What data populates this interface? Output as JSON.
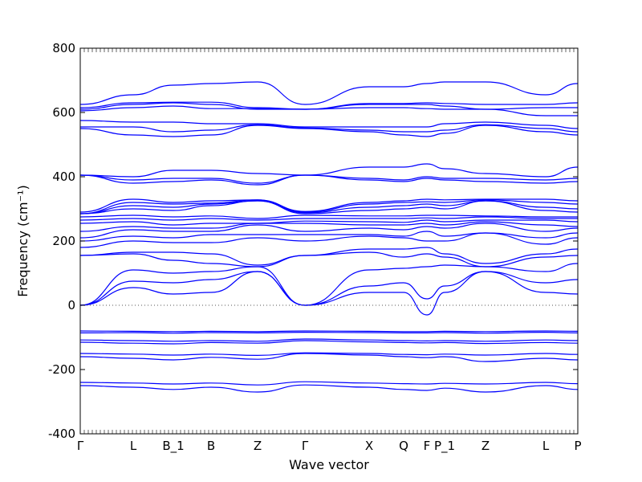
{
  "chart_data": {
    "type": "line",
    "title": "",
    "xlabel": "Wave vector",
    "ylabel": "Frequency (cm⁻¹)",
    "ylim": [
      -400,
      800
    ],
    "yticks": [
      -400,
      -200,
      0,
      200,
      400,
      600,
      800
    ],
    "path": [
      "Γ",
      "L",
      "B_1",
      "B",
      "Z",
      "Γ",
      "X",
      "Q",
      "F",
      "P_1",
      "Z",
      "L",
      "P"
    ],
    "grid": false,
    "legend": "none",
    "reference_line": {
      "y": 0,
      "style": "dotted"
    },
    "line_color": "#0000ff",
    "branches": [
      [
        -250,
        -255,
        -262,
        -255,
        -270,
        -248,
        -255,
        -262,
        -265,
        -258,
        -270,
        -250,
        -262
      ],
      [
        -240,
        -242,
        -245,
        -242,
        -248,
        -238,
        -242,
        -244,
        -245,
        -243,
        -245,
        -240,
        -244
      ],
      [
        -160,
        -165,
        -170,
        -162,
        -168,
        -150,
        -155,
        -160,
        -163,
        -160,
        -175,
        -165,
        -170
      ],
      [
        -150,
        -152,
        -155,
        -152,
        -156,
        -148,
        -150,
        -153,
        -154,
        -152,
        -155,
        -150,
        -153
      ],
      [
        -115,
        -118,
        -120,
        -116,
        -118,
        -110,
        -114,
        -116,
        -117,
        -116,
        -119,
        -116,
        -118
      ],
      [
        -108,
        -110,
        -112,
        -110,
        -112,
        -105,
        -108,
        -110,
        -111,
        -110,
        -112,
        -108,
        -110
      ],
      [
        -86,
        -85,
        -87,
        -85,
        -86,
        -84,
        -85,
        -86,
        -86,
        -85,
        -87,
        -84,
        -86
      ],
      [
        -80,
        -81,
        -82,
        -81,
        -82,
        -80,
        -81,
        -82,
        -82,
        -81,
        -82,
        -80,
        -81
      ],
      [
        0,
        55,
        35,
        40,
        105,
        0,
        40,
        40,
        -30,
        40,
        105,
        40,
        35
      ],
      [
        0,
        75,
        70,
        80,
        105,
        0,
        60,
        70,
        20,
        60,
        105,
        70,
        80
      ],
      [
        0,
        110,
        100,
        105,
        120,
        0,
        110,
        115,
        120,
        125,
        120,
        105,
        130
      ],
      [
        155,
        160,
        140,
        130,
        120,
        155,
        165,
        150,
        160,
        150,
        120,
        150,
        155
      ],
      [
        155,
        165,
        165,
        160,
        125,
        155,
        175,
        175,
        180,
        160,
        130,
        160,
        175
      ],
      [
        180,
        200,
        195,
        195,
        210,
        200,
        215,
        210,
        200,
        200,
        225,
        190,
        210
      ],
      [
        200,
        215,
        210,
        220,
        220,
        220,
        220,
        215,
        230,
        215,
        225,
        210,
        225
      ],
      [
        210,
        235,
        230,
        230,
        250,
        230,
        240,
        235,
        245,
        240,
        255,
        230,
        240
      ],
      [
        230,
        245,
        240,
        240,
        255,
        255,
        250,
        250,
        255,
        250,
        260,
        250,
        245
      ],
      [
        255,
        260,
        250,
        255,
        255,
        262,
        260,
        258,
        265,
        260,
        265,
        265,
        260
      ],
      [
        265,
        270,
        265,
        270,
        265,
        270,
        270,
        270,
        272,
        270,
        275,
        270,
        270
      ],
      [
        275,
        280,
        275,
        278,
        270,
        280,
        278,
        278,
        280,
        280,
        278,
        275,
        275
      ],
      [
        285,
        300,
        295,
        310,
        325,
        285,
        295,
        300,
        305,
        300,
        325,
        295,
        290
      ],
      [
        285,
        310,
        305,
        315,
        325,
        288,
        305,
        310,
        315,
        310,
        325,
        305,
        300
      ],
      [
        285,
        320,
        315,
        318,
        328,
        290,
        315,
        320,
        322,
        320,
        328,
        320,
        315
      ],
      [
        290,
        330,
        320,
        325,
        328,
        292,
        320,
        325,
        330,
        328,
        330,
        330,
        325
      ],
      [
        405,
        380,
        385,
        390,
        375,
        405,
        390,
        385,
        395,
        390,
        385,
        380,
        385
      ],
      [
        405,
        390,
        395,
        395,
        380,
        405,
        395,
        390,
        400,
        395,
        395,
        390,
        395
      ],
      [
        405,
        400,
        420,
        420,
        410,
        405,
        430,
        430,
        440,
        425,
        410,
        400,
        430
      ],
      [
        550,
        530,
        525,
        530,
        560,
        550,
        540,
        530,
        525,
        535,
        560,
        540,
        530
      ],
      [
        555,
        555,
        540,
        545,
        562,
        552,
        545,
        540,
        540,
        545,
        562,
        550,
        540
      ],
      [
        575,
        570,
        570,
        565,
        565,
        555,
        555,
        555,
        555,
        565,
        570,
        560,
        550
      ],
      [
        605,
        615,
        620,
        612,
        612,
        610,
        615,
        615,
        612,
        610,
        610,
        590,
        590
      ],
      [
        610,
        625,
        630,
        625,
        610,
        610,
        625,
        625,
        625,
        620,
        610,
        615,
        615
      ],
      [
        615,
        630,
        632,
        632,
        615,
        610,
        628,
        628,
        630,
        628,
        625,
        625,
        630
      ],
      [
        625,
        655,
        685,
        690,
        695,
        625,
        680,
        680,
        690,
        695,
        695,
        655,
        690
      ]
    ]
  }
}
